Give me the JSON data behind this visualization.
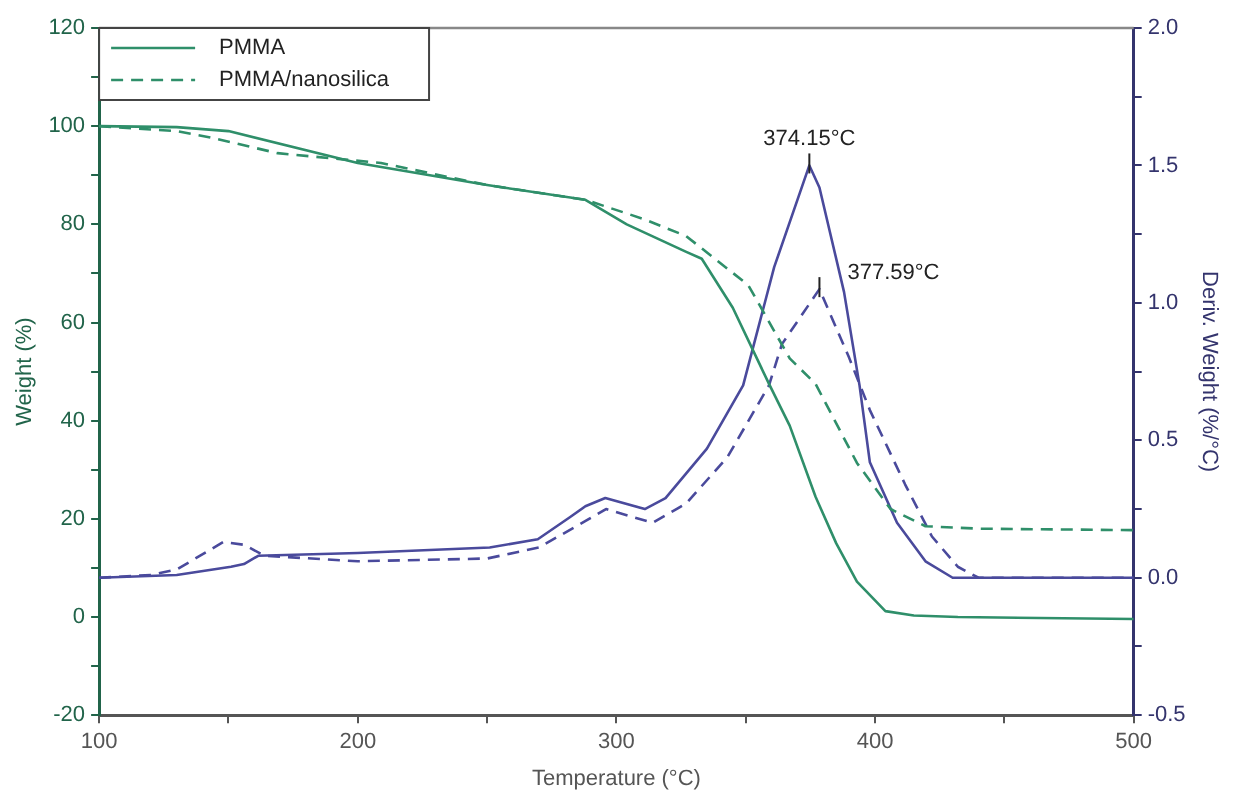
{
  "chart_data": {
    "type": "line",
    "xlabel": "Temperature (°C)",
    "ylabel": "Weight (%)",
    "y2label": "Deriv. Weight (%/°C)",
    "xlim": [
      100,
      500
    ],
    "xticks": [
      100,
      {
        "value": 150,
        "label": null
      },
      200,
      {
        "value": 250,
        "label": null
      },
      300,
      {
        "value": 350,
        "label": null
      },
      400,
      {
        "value": 450,
        "label": null
      },
      500
    ],
    "ylim": [
      -20,
      120
    ],
    "yticks": [
      -20,
      {
        "value": -10,
        "label": null
      },
      0,
      {
        "value": 10,
        "label": null
      },
      20,
      {
        "value": 30,
        "label": null
      },
      40,
      {
        "value": 50,
        "label": null
      },
      60,
      {
        "value": 70,
        "label": null
      },
      80,
      {
        "value": 90,
        "label": null
      },
      100,
      {
        "value": 110,
        "label": null
      },
      120
    ],
    "y2lim": [
      -0.5,
      2.0
    ],
    "y2ticks": [
      {
        "value": -0.5,
        "label": "-0.5"
      },
      {
        "value": -0.25,
        "label": null
      },
      {
        "value": 0,
        "label": "0.0"
      },
      {
        "value": 0.25,
        "label": null
      },
      {
        "value": 0.5,
        "label": "0.5"
      },
      {
        "value": 0.75,
        "label": null
      },
      {
        "value": 1.0,
        "label": "1.0"
      },
      {
        "value": 1.25,
        "label": null
      },
      {
        "value": 1.5,
        "label": "1.5"
      },
      {
        "value": 1.75,
        "label": null
      },
      {
        "value": 2.0,
        "label": "2.0"
      }
    ],
    "grid": false,
    "legend": "top left",
    "marker": "none",
    "annotations": [
      "374.15°C",
      "377.59°C"
    ],
    "series": [
      {
        "name": "PMMA",
        "color": "#2f8f6a",
        "line_style": "solid",
        "x": [
          100,
          130,
          150,
          200,
          250,
          288,
          304,
          327,
          333,
          345,
          359,
          367,
          377,
          385,
          393,
          404,
          415,
          432,
          500
        ],
        "values": [
          100,
          99.8,
          99,
          92.5,
          88,
          85,
          80,
          74.4,
          73,
          63,
          47.5,
          39,
          24.5,
          15,
          7.2,
          1.2,
          0.3,
          0,
          -0.4
        ]
      },
      {
        "name": "PMMA/nanosilica",
        "color": "#2f8f6a",
        "line_style": "dashed",
        "x": [
          100,
          130,
          143,
          169,
          209,
          250,
          288,
          311,
          327,
          351,
          367,
          377,
          393,
          406,
          419.5,
          440,
          500
        ],
        "values": [
          100,
          99,
          97.7,
          94.5,
          92.5,
          88,
          85,
          81,
          77.6,
          67.6,
          52.7,
          47.5,
          31.4,
          22,
          18.5,
          18,
          17.7
        ]
      },
      {
        "color": "#4a4a9c",
        "line_style": "solid",
        "axis": "y2",
        "x": [
          100,
          130,
          151,
          156,
          161.5,
          200,
          251,
          269.6,
          282,
          288,
          295.7,
          311,
          319,
          335,
          349,
          361,
          374.6,
          378.5,
          388,
          394,
          398,
          408.5,
          419.5,
          430,
          500
        ],
        "values": [
          0,
          0.01,
          0.04,
          0.05,
          0.08,
          0.09,
          0.11,
          0.14,
          0.22,
          0.26,
          0.29,
          0.25,
          0.29,
          0.47,
          0.7,
          1.13,
          1.5,
          1.42,
          1.04,
          0.7,
          0.42,
          0.2,
          0.06,
          0,
          0
        ]
      },
      {
        "color": "#4a4a9c",
        "line_style": "dashed",
        "axis": "y2",
        "x": [
          100,
          120,
          130,
          148,
          156,
          164,
          200,
          250,
          270,
          285,
          296,
          314,
          327,
          343,
          359,
          364,
          378.5,
          390,
          398,
          411.6,
          422,
          432,
          440,
          500
        ],
        "values": [
          0,
          0.01,
          0.03,
          0.13,
          0.12,
          0.08,
          0.06,
          0.07,
          0.11,
          0.19,
          0.25,
          0.2,
          0.27,
          0.44,
          0.7,
          0.85,
          1.05,
          0.8,
          0.61,
          0.34,
          0.15,
          0.04,
          0,
          0
        ]
      }
    ]
  }
}
